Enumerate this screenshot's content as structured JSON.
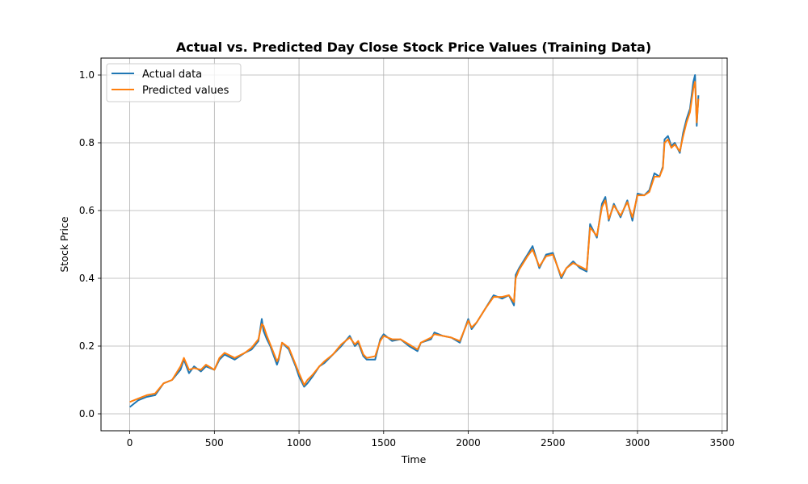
{
  "chart_data": {
    "type": "line",
    "title": "Actual vs. Predicted Day Close Stock Price Values (Training Data)",
    "xlabel": "Time",
    "ylabel": "Stock Price",
    "xlim": [
      -170,
      3530
    ],
    "ylim": [
      -0.05,
      1.05
    ],
    "x_ticks": [
      0,
      500,
      1000,
      1500,
      2000,
      2500,
      3000,
      3500
    ],
    "x_tick_labels": [
      "0",
      "500",
      "1000",
      "1500",
      "2000",
      "2500",
      "3000",
      "3500"
    ],
    "y_ticks": [
      0.0,
      0.2,
      0.4,
      0.6,
      0.8,
      1.0
    ],
    "y_tick_labels": [
      "0.0",
      "0.2",
      "0.4",
      "0.6",
      "0.8",
      "1.0"
    ],
    "grid": true,
    "legend_position": "upper-left",
    "series": [
      {
        "name": "Actual data",
        "color": "#1f77b4",
        "x": [
          0,
          50,
          100,
          150,
          200,
          250,
          300,
          320,
          350,
          380,
          420,
          450,
          500,
          530,
          560,
          620,
          680,
          720,
          760,
          780,
          790,
          810,
          830,
          870,
          880,
          900,
          940,
          980,
          1000,
          1030,
          1050,
          1080,
          1120,
          1150,
          1200,
          1250,
          1300,
          1330,
          1350,
          1380,
          1400,
          1450,
          1480,
          1500,
          1550,
          1600,
          1650,
          1700,
          1720,
          1780,
          1800,
          1850,
          1900,
          1950,
          2000,
          2020,
          2050,
          2100,
          2150,
          2200,
          2240,
          2270,
          2280,
          2300,
          2350,
          2380,
          2420,
          2460,
          2500,
          2550,
          2580,
          2620,
          2660,
          2700,
          2720,
          2760,
          2790,
          2810,
          2830,
          2860,
          2900,
          2940,
          2970,
          3000,
          3040,
          3070,
          3100,
          3130,
          3150,
          3160,
          3180,
          3200,
          3220,
          3250,
          3270,
          3290,
          3310,
          3330,
          3340,
          3350,
          3360
        ],
        "y": [
          0.02,
          0.04,
          0.05,
          0.055,
          0.09,
          0.1,
          0.13,
          0.16,
          0.12,
          0.14,
          0.125,
          0.14,
          0.13,
          0.16,
          0.175,
          0.16,
          0.18,
          0.19,
          0.215,
          0.28,
          0.245,
          0.22,
          0.2,
          0.145,
          0.16,
          0.21,
          0.19,
          0.14,
          0.11,
          0.08,
          0.09,
          0.11,
          0.14,
          0.15,
          0.175,
          0.2,
          0.23,
          0.2,
          0.21,
          0.17,
          0.16,
          0.16,
          0.22,
          0.235,
          0.215,
          0.22,
          0.2,
          0.185,
          0.21,
          0.22,
          0.24,
          0.23,
          0.225,
          0.21,
          0.28,
          0.25,
          0.27,
          0.31,
          0.35,
          0.34,
          0.35,
          0.32,
          0.41,
          0.43,
          0.47,
          0.495,
          0.43,
          0.47,
          0.475,
          0.4,
          0.43,
          0.45,
          0.43,
          0.42,
          0.56,
          0.52,
          0.62,
          0.64,
          0.57,
          0.62,
          0.58,
          0.63,
          0.57,
          0.65,
          0.645,
          0.66,
          0.71,
          0.7,
          0.73,
          0.81,
          0.82,
          0.79,
          0.8,
          0.77,
          0.83,
          0.87,
          0.9,
          0.98,
          1.0,
          0.85,
          0.94
        ]
      },
      {
        "name": "Predicted values",
        "color": "#ff7f0e",
        "x": [
          0,
          50,
          100,
          150,
          200,
          250,
          300,
          320,
          350,
          380,
          420,
          450,
          500,
          530,
          560,
          620,
          680,
          720,
          760,
          780,
          790,
          810,
          830,
          870,
          880,
          900,
          940,
          980,
          1000,
          1030,
          1050,
          1080,
          1120,
          1150,
          1200,
          1250,
          1300,
          1330,
          1350,
          1380,
          1400,
          1450,
          1480,
          1500,
          1550,
          1600,
          1650,
          1700,
          1720,
          1780,
          1800,
          1850,
          1900,
          1950,
          2000,
          2020,
          2050,
          2100,
          2150,
          2200,
          2240,
          2270,
          2280,
          2300,
          2350,
          2380,
          2420,
          2460,
          2500,
          2550,
          2580,
          2620,
          2660,
          2700,
          2720,
          2760,
          2790,
          2810,
          2830,
          2860,
          2900,
          2940,
          2970,
          3000,
          3040,
          3070,
          3100,
          3130,
          3150,
          3160,
          3180,
          3200,
          3220,
          3250,
          3270,
          3290,
          3310,
          3330,
          3340,
          3350,
          3360
        ],
        "y": [
          0.035,
          0.045,
          0.055,
          0.06,
          0.09,
          0.1,
          0.14,
          0.165,
          0.13,
          0.135,
          0.13,
          0.145,
          0.13,
          0.165,
          0.18,
          0.165,
          0.18,
          0.195,
          0.22,
          0.265,
          0.26,
          0.23,
          0.205,
          0.155,
          0.165,
          0.21,
          0.195,
          0.145,
          0.12,
          0.085,
          0.1,
          0.115,
          0.14,
          0.155,
          0.175,
          0.205,
          0.225,
          0.205,
          0.215,
          0.175,
          0.165,
          0.17,
          0.215,
          0.23,
          0.22,
          0.22,
          0.205,
          0.19,
          0.21,
          0.225,
          0.235,
          0.23,
          0.225,
          0.215,
          0.275,
          0.255,
          0.27,
          0.31,
          0.345,
          0.345,
          0.35,
          0.33,
          0.4,
          0.425,
          0.465,
          0.485,
          0.435,
          0.465,
          0.47,
          0.405,
          0.43,
          0.445,
          0.435,
          0.425,
          0.55,
          0.525,
          0.61,
          0.63,
          0.575,
          0.615,
          0.585,
          0.625,
          0.58,
          0.645,
          0.645,
          0.655,
          0.7,
          0.7,
          0.725,
          0.8,
          0.81,
          0.785,
          0.795,
          0.775,
          0.82,
          0.86,
          0.89,
          0.96,
          0.98,
          0.86,
          0.93
        ]
      }
    ]
  }
}
